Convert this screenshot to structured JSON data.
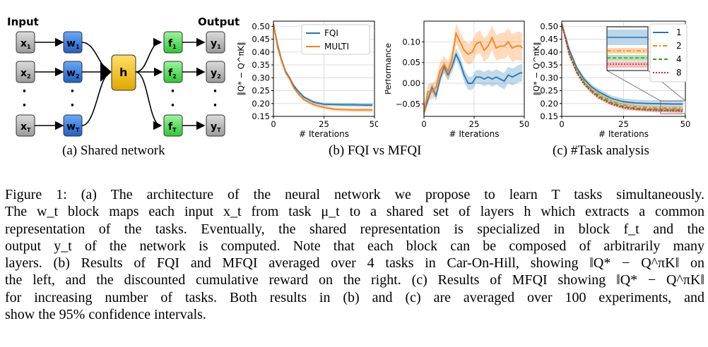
{
  "panel_a": {
    "caption": "(a) Shared network",
    "input_label": "Input",
    "output_label": "Output",
    "inputs": [
      "x1",
      "x2",
      "xT"
    ],
    "w_blocks": [
      "w1",
      "w2",
      "wT"
    ],
    "h_block": "h",
    "f_blocks": [
      "f1",
      "f2",
      "fT"
    ],
    "outputs": [
      "y1",
      "y2",
      "yT"
    ],
    "colors": {
      "x": "#b9b9b9",
      "w": "#3f86e6",
      "h": "#f2c200",
      "f": "#66e56a",
      "y": "#b9b9b9"
    }
  },
  "panel_b": {
    "caption": "(b) FQI vs MFQI",
    "legend": [
      "FQI",
      "MULTI"
    ],
    "left_ylabel": "‖Q* − Q^πK‖",
    "right_ylabel": "Performance",
    "xlabel": "# Iterations",
    "left_yticks": [
      "0.50",
      "0.45",
      "0.40",
      "0.35",
      "0.30",
      "0.25",
      "0.20",
      "0.15"
    ],
    "right_yticks": [
      "0.10",
      "0.05",
      "0.00",
      "−0.05"
    ],
    "xticks": [
      "0",
      "25",
      "50"
    ]
  },
  "panel_c": {
    "caption": "(c) #Task analysis",
    "ylabel": "‖Q* − Q^πK‖",
    "xlabel": "# Iterations",
    "legend": [
      "1",
      "2",
      "4",
      "8"
    ],
    "yticks": [
      "0.50",
      "0.45",
      "0.40",
      "0.35",
      "0.30",
      "0.25",
      "0.20",
      "0.15"
    ],
    "xticks": [
      "0",
      "25",
      "50"
    ]
  },
  "chart_data": [
    {
      "type": "line",
      "x": [
        0,
        2,
        4,
        6,
        8,
        10,
        12,
        15,
        20,
        25,
        30,
        35,
        40,
        45,
        49
      ],
      "series": [
        {
          "name": "FQI",
          "values": [
            0.51,
            0.43,
            0.37,
            0.325,
            0.3,
            0.27,
            0.25,
            0.225,
            0.205,
            0.197,
            0.196,
            0.195,
            0.195,
            0.194,
            0.194
          ],
          "color": "#1f77b4"
        },
        {
          "name": "MULTI",
          "values": [
            0.51,
            0.42,
            0.365,
            0.32,
            0.295,
            0.262,
            0.24,
            0.215,
            0.195,
            0.185,
            0.178,
            0.176,
            0.175,
            0.175,
            0.175
          ],
          "color": "#ff7f0e"
        }
      ],
      "xlabel": "# Iterations",
      "ylim": [
        0.15,
        0.52
      ],
      "xlim": [
        0,
        50
      ],
      "legend": "top-right",
      "grid": true
    },
    {
      "type": "line",
      "x": [
        0,
        2,
        4,
        6,
        8,
        10,
        12,
        14,
        16,
        18,
        20,
        22,
        24,
        26,
        28,
        30,
        32,
        34,
        36,
        38,
        40,
        42,
        44,
        46,
        48,
        49
      ],
      "series": [
        {
          "name": "FQI",
          "values": [
            -0.07,
            -0.04,
            -0.01,
            -0.03,
            0.01,
            0.04,
            0.02,
            0.04,
            0.07,
            0.05,
            0.02,
            0.0,
            0.0,
            0.015,
            0.015,
            0.01,
            0.015,
            0.01,
            0.015,
            0.01,
            0.005,
            0.02,
            0.015,
            0.02,
            0.025,
            0.025
          ],
          "color": "#1f77b4"
        },
        {
          "name": "MULTI",
          "values": [
            -0.07,
            -0.02,
            -0.02,
            -0.01,
            0.03,
            0.045,
            0.03,
            0.06,
            0.12,
            0.1,
            0.08,
            0.07,
            0.075,
            0.095,
            0.1,
            0.08,
            0.09,
            0.11,
            0.085,
            0.09,
            0.09,
            0.1,
            0.085,
            0.09,
            0.09,
            0.085
          ],
          "color": "#ff7f0e"
        }
      ],
      "xlabel": "# Iterations",
      "ylabel": "Performance",
      "ylim": [
        -0.08,
        0.15
      ],
      "xlim": [
        0,
        50
      ],
      "grid": true
    },
    {
      "type": "line",
      "x": [
        0,
        3,
        6,
        9,
        12,
        15,
        20,
        25,
        30,
        35,
        40,
        45,
        49
      ],
      "series": [
        {
          "name": "1",
          "values": [
            0.51,
            0.41,
            0.34,
            0.295,
            0.265,
            0.245,
            0.22,
            0.207,
            0.202,
            0.2,
            0.199,
            0.198,
            0.198
          ],
          "color": "#1f77b4"
        },
        {
          "name": "2",
          "values": [
            0.51,
            0.4,
            0.33,
            0.285,
            0.255,
            0.235,
            0.21,
            0.195,
            0.188,
            0.185,
            0.183,
            0.182,
            0.181
          ],
          "color": "#ff7f0e"
        },
        {
          "name": "4",
          "values": [
            0.51,
            0.395,
            0.325,
            0.28,
            0.25,
            0.228,
            0.203,
            0.188,
            0.181,
            0.178,
            0.176,
            0.175,
            0.175
          ],
          "color": "#2ca02c"
        },
        {
          "name": "8",
          "values": [
            0.51,
            0.39,
            0.32,
            0.275,
            0.245,
            0.222,
            0.198,
            0.183,
            0.177,
            0.174,
            0.172,
            0.171,
            0.17
          ],
          "color": "#d62728"
        }
      ],
      "xlabel": "# Iterations",
      "ylim": [
        0.15,
        0.52
      ],
      "xlim": [
        0,
        50
      ],
      "legend": "top-right",
      "grid": true
    }
  ],
  "caption": {
    "lines": [
      "Figure 1: (a) The architecture of the neural network we propose to learn T tasks simultaneously.",
      "The w_t block maps each input x_t from task μ_t to a shared set of layers h which extracts a common",
      "representation of the tasks. Eventually, the shared representation is specialized in block f_t and the",
      "output y_t of the network is computed. Note that each block can be composed of arbitrarily many",
      "layers. (b) Results of FQI and MFQI averaged over 4 tasks in Car-On-Hill, showing ‖Q* − Q^πK‖ on",
      "the left, and the discounted cumulative reward on the right. (c) Results of MFQI showing ‖Q* − Q^πK‖",
      "for increasing number of tasks. Both results in (b) and (c) are averaged over 100 experiments, and",
      "show the 95% confidence intervals."
    ]
  }
}
